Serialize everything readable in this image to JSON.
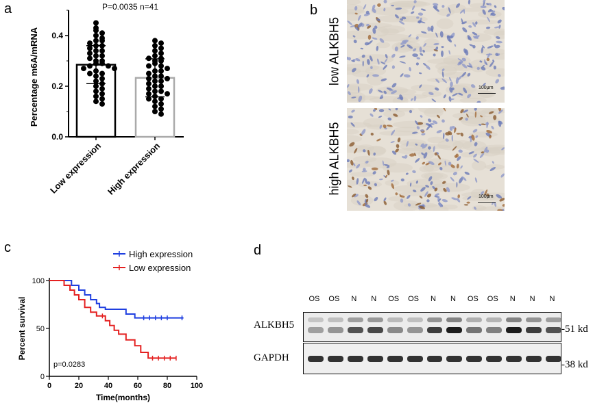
{
  "panels": {
    "a": "a",
    "b": "b",
    "c": "c",
    "d": "d"
  },
  "chart_data": [
    {
      "panel": "a",
      "type": "bar",
      "annotation": "P=0.0035  n=41",
      "ylabel": "Percentage m6A/mRNA",
      "xlabel": "",
      "ylim": [
        0,
        0.5
      ],
      "yticks": [
        "0.0",
        "0.2",
        "0.4"
      ],
      "categories": [
        "Low expression",
        "High expression"
      ],
      "values": [
        0.285,
        0.233
      ],
      "error_sd": [
        0.075,
        0.075
      ],
      "bar_colors": [
        "#000000",
        "#aaaaaa"
      ],
      "points": [
        [
          0.45,
          0.43,
          0.42,
          0.41,
          0.4,
          0.39,
          0.38,
          0.38,
          0.37,
          0.36,
          0.36,
          0.35,
          0.34,
          0.34,
          0.33,
          0.32,
          0.32,
          0.31,
          0.3,
          0.3,
          0.29,
          0.29,
          0.28,
          0.28,
          0.27,
          0.27,
          0.26,
          0.25,
          0.25,
          0.24,
          0.23,
          0.22,
          0.21,
          0.2,
          0.19,
          0.18,
          0.17,
          0.16,
          0.15,
          0.14,
          0.13
        ],
        [
          0.38,
          0.37,
          0.36,
          0.35,
          0.34,
          0.33,
          0.32,
          0.31,
          0.31,
          0.3,
          0.3,
          0.29,
          0.28,
          0.28,
          0.27,
          0.26,
          0.26,
          0.25,
          0.24,
          0.24,
          0.23,
          0.23,
          0.22,
          0.22,
          0.21,
          0.2,
          0.2,
          0.19,
          0.18,
          0.18,
          0.17,
          0.17,
          0.16,
          0.15,
          0.15,
          0.14,
          0.13,
          0.12,
          0.11,
          0.1,
          0.09
        ]
      ]
    },
    {
      "panel": "c",
      "type": "line",
      "xlabel": "Time(months)",
      "ylabel": "Percent survival",
      "xlim": [
        0,
        100
      ],
      "ylim": [
        0,
        100
      ],
      "xticks": [
        "0",
        "20",
        "40",
        "60",
        "80",
        "100"
      ],
      "yticks": [
        "0",
        "50",
        "100"
      ],
      "annotation": "p=0.0283",
      "series": [
        {
          "name": "High expression",
          "color": "#1f3fe0",
          "x": [
            0,
            15,
            15,
            20,
            20,
            24,
            24,
            28,
            28,
            32,
            32,
            34,
            34,
            38,
            38,
            52,
            52,
            58,
            58,
            91
          ],
          "y": [
            100,
            100,
            95,
            95,
            90,
            90,
            85,
            85,
            80,
            80,
            76,
            76,
            72,
            72,
            70,
            70,
            65,
            65,
            61,
            61
          ],
          "censor_x": [
            64,
            68,
            72,
            76,
            80,
            90
          ]
        },
        {
          "name": "Low expression",
          "color": "#e42020",
          "x": [
            0,
            10,
            10,
            14,
            14,
            17,
            17,
            20,
            20,
            24,
            24,
            28,
            28,
            32,
            32,
            38,
            38,
            41,
            41,
            44,
            44,
            47,
            47,
            52,
            52,
            58,
            58,
            62,
            62,
            67,
            67,
            86
          ],
          "y": [
            100,
            100,
            95,
            95,
            90,
            90,
            85,
            85,
            80,
            80,
            72,
            72,
            67,
            67,
            63,
            63,
            58,
            58,
            53,
            53,
            48,
            48,
            44,
            44,
            38,
            38,
            32,
            32,
            25,
            25,
            19,
            19
          ],
          "censor_x": [
            36,
            70,
            74,
            78,
            82,
            86
          ]
        }
      ]
    }
  ],
  "ihc": {
    "low_label": "low ALKBH5",
    "high_label": "high ALKBH5",
    "scale_low": "100μm",
    "scale_high": "100μm"
  },
  "western": {
    "lanes": [
      "OS",
      "OS",
      "N",
      "N",
      "OS",
      "OS",
      "N",
      "N",
      "OS",
      "OS",
      "N",
      "N",
      "N"
    ],
    "rows": [
      {
        "label": "ALKBH5",
        "size": "-51 kd"
      },
      {
        "label": "GAPDH",
        "size": "-38 kd"
      }
    ]
  }
}
